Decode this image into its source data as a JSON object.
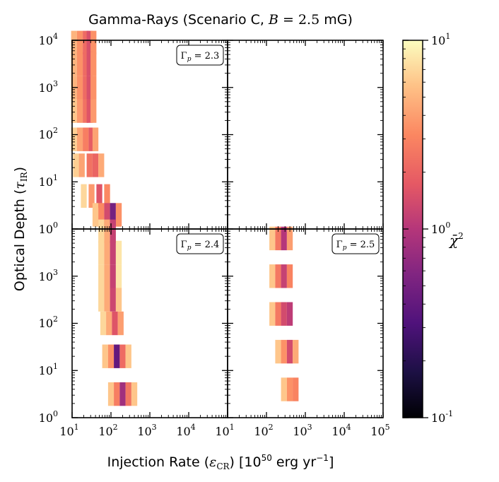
{
  "chart_data": {
    "type": "heatmap",
    "title": "Gamma-Rays (Scenario C, B = 2.5 mG)",
    "xlabel": "Injection Rate (ε_CR) [10^50 erg yr^-1]",
    "ylabel": "Optical Depth (τ_IR)",
    "x_scale": "log",
    "y_scale": "log",
    "xlim": [
      10,
      100000
    ],
    "ylim": [
      1,
      10000
    ],
    "x_ticks": [
      "10^1",
      "10^2",
      "10^3",
      "10^4",
      "10^1",
      "10^2",
      "10^3",
      "10^4",
      "10^5"
    ],
    "y_ticks": [
      "10^0",
      "10^1",
      "10^2",
      "10^3",
      "10^4"
    ],
    "colorbar": {
      "label": "χ̄^2",
      "scale": "log",
      "min": 0.1,
      "max": 10,
      "ticks": [
        "10^-1",
        "10^0",
        "10^1"
      ],
      "colormap": "magma"
    },
    "panels": [
      {
        "id": "top-left",
        "annotation": "Γ_p = 2.3",
        "cells": [
          {
            "x": 1.05,
            "y": 3.95,
            "chi2": 5
          },
          {
            "x": 1.2,
            "y": 3.95,
            "chi2": 3.5
          },
          {
            "x": 1.35,
            "y": 3.95,
            "chi2": 2.2
          },
          {
            "x": 1.45,
            "y": 3.95,
            "chi2": 1.5
          },
          {
            "x": 1.55,
            "y": 3.95,
            "chi2": 3.5
          },
          {
            "x": 1.05,
            "y": 3.5,
            "chi2": 5
          },
          {
            "x": 1.2,
            "y": 3.5,
            "chi2": 3.5
          },
          {
            "x": 1.35,
            "y": 3.5,
            "chi2": 2.2
          },
          {
            "x": 1.45,
            "y": 3.5,
            "chi2": 1.5
          },
          {
            "x": 1.55,
            "y": 3.5,
            "chi2": 3.5
          },
          {
            "x": 1.05,
            "y": 3.0,
            "chi2": 5
          },
          {
            "x": 1.2,
            "y": 3.0,
            "chi2": 3.5
          },
          {
            "x": 1.35,
            "y": 3.0,
            "chi2": 2.2
          },
          {
            "x": 1.45,
            "y": 3.0,
            "chi2": 1.5
          },
          {
            "x": 1.55,
            "y": 3.0,
            "chi2": 3.5
          },
          {
            "x": 1.05,
            "y": 2.5,
            "chi2": 6
          },
          {
            "x": 1.2,
            "y": 2.5,
            "chi2": 3.8
          },
          {
            "x": 1.35,
            "y": 2.5,
            "chi2": 2.4
          },
          {
            "x": 1.45,
            "y": 2.5,
            "chi2": 1.6
          },
          {
            "x": 1.55,
            "y": 2.5,
            "chi2": 3.8
          },
          {
            "x": 1.05,
            "y": 1.9,
            "chi2": 6.5
          },
          {
            "x": 1.2,
            "y": 1.9,
            "chi2": 4.2
          },
          {
            "x": 1.35,
            "y": 1.9,
            "chi2": 2.8
          },
          {
            "x": 1.5,
            "y": 1.9,
            "chi2": 1.8
          },
          {
            "x": 1.6,
            "y": 1.9,
            "chi2": 4.2
          },
          {
            "x": 1.1,
            "y": 1.35,
            "chi2": 6.5
          },
          {
            "x": 1.25,
            "y": 1.35,
            "chi2": 4.2
          },
          {
            "x": 1.45,
            "y": 1.35,
            "chi2": 2.4
          },
          {
            "x": 1.6,
            "y": 1.35,
            "chi2": 2.0
          },
          {
            "x": 1.75,
            "y": 1.35,
            "chi2": 4.5
          },
          {
            "x": 1.3,
            "y": 0.7,
            "chi2": 7
          },
          {
            "x": 1.5,
            "y": 0.7,
            "chi2": 3.8
          },
          {
            "x": 1.7,
            "y": 0.7,
            "chi2": 1.6
          },
          {
            "x": 1.9,
            "y": 0.7,
            "chi2": 3.2
          },
          {
            "x": 1.6,
            "y": 0.3,
            "chi2": 6
          },
          {
            "x": 1.75,
            "y": 0.3,
            "chi2": 3.2
          },
          {
            "x": 1.9,
            "y": 0.3,
            "chi2": 1.4
          },
          {
            "x": 2.05,
            "y": 0.3,
            "chi2": 0.5
          },
          {
            "x": 2.2,
            "y": 0.3,
            "chi2": 3.5
          }
        ]
      },
      {
        "id": "top-right",
        "annotation": "",
        "cells": []
      },
      {
        "id": "bottom-left",
        "annotation": "Γ_p = 2.4",
        "cells": [
          {
            "x": 1.75,
            "y": 3.95,
            "chi2": 7
          },
          {
            "x": 1.9,
            "y": 3.95,
            "chi2": 4.5
          },
          {
            "x": 2.05,
            "y": 3.95,
            "chi2": 1.2
          },
          {
            "x": 1.75,
            "y": 3.5,
            "chi2": 7
          },
          {
            "x": 1.9,
            "y": 3.5,
            "chi2": 4.5
          },
          {
            "x": 2.05,
            "y": 3.5,
            "chi2": 1.2
          },
          {
            "x": 2.2,
            "y": 3.5,
            "chi2": 8
          },
          {
            "x": 1.75,
            "y": 3.0,
            "chi2": 7
          },
          {
            "x": 1.9,
            "y": 3.0,
            "chi2": 4.5
          },
          {
            "x": 2.05,
            "y": 3.0,
            "chi2": 1.2
          },
          {
            "x": 2.2,
            "y": 3.0,
            "chi2": 8
          },
          {
            "x": 1.75,
            "y": 2.5,
            "chi2": 7
          },
          {
            "x": 1.9,
            "y": 2.5,
            "chi2": 4.5
          },
          {
            "x": 2.05,
            "y": 2.5,
            "chi2": 1.3
          },
          {
            "x": 2.2,
            "y": 2.5,
            "chi2": 6
          },
          {
            "x": 1.8,
            "y": 2.0,
            "chi2": 7
          },
          {
            "x": 1.95,
            "y": 2.0,
            "chi2": 4.5
          },
          {
            "x": 2.1,
            "y": 2.0,
            "chi2": 1.6
          },
          {
            "x": 2.25,
            "y": 2.0,
            "chi2": 4.0
          },
          {
            "x": 1.85,
            "y": 1.3,
            "chi2": 6
          },
          {
            "x": 2.0,
            "y": 1.3,
            "chi2": 3.5
          },
          {
            "x": 2.15,
            "y": 1.3,
            "chi2": 0.4
          },
          {
            "x": 2.3,
            "y": 1.3,
            "chi2": 2.2
          },
          {
            "x": 2.45,
            "y": 1.3,
            "chi2": 6
          },
          {
            "x": 2.0,
            "y": 0.5,
            "chi2": 6
          },
          {
            "x": 2.15,
            "y": 0.5,
            "chi2": 2.8
          },
          {
            "x": 2.3,
            "y": 0.5,
            "chi2": 0.8
          },
          {
            "x": 2.45,
            "y": 0.5,
            "chi2": 2.5
          },
          {
            "x": 2.6,
            "y": 0.5,
            "chi2": 6
          }
        ]
      },
      {
        "id": "bottom-right",
        "annotation": "Γ_p = 2.5",
        "cells": [
          {
            "x": 2.15,
            "y": 3.8,
            "chi2": 6
          },
          {
            "x": 2.3,
            "y": 3.8,
            "chi2": 2.6
          },
          {
            "x": 2.45,
            "y": 3.8,
            "chi2": 1.0
          },
          {
            "x": 2.6,
            "y": 3.8,
            "chi2": 4.0
          },
          {
            "x": 2.15,
            "y": 3.0,
            "chi2": 6
          },
          {
            "x": 2.3,
            "y": 3.0,
            "chi2": 2.6
          },
          {
            "x": 2.45,
            "y": 3.0,
            "chi2": 1.2
          },
          {
            "x": 2.6,
            "y": 3.0,
            "chi2": 3.0
          },
          {
            "x": 2.15,
            "y": 2.2,
            "chi2": 6
          },
          {
            "x": 2.3,
            "y": 2.2,
            "chi2": 2.6
          },
          {
            "x": 2.45,
            "y": 2.2,
            "chi2": 1.4
          },
          {
            "x": 2.6,
            "y": 2.2,
            "chi2": 1.1
          },
          {
            "x": 2.3,
            "y": 1.4,
            "chi2": 6
          },
          {
            "x": 2.45,
            "y": 1.4,
            "chi2": 3.5
          },
          {
            "x": 2.6,
            "y": 1.4,
            "chi2": 1.4
          },
          {
            "x": 2.75,
            "y": 1.4,
            "chi2": 4.5
          },
          {
            "x": 2.45,
            "y": 0.6,
            "chi2": 6
          },
          {
            "x": 2.6,
            "y": 0.6,
            "chi2": 3.5
          },
          {
            "x": 2.75,
            "y": 0.6,
            "chi2": 3.0
          }
        ]
      }
    ]
  }
}
